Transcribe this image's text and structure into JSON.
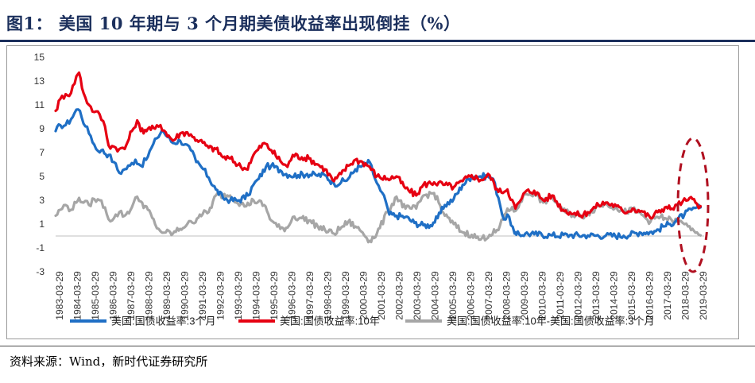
{
  "title": "图1：  美国 10 年期与 3 个月期美债收益率出现倒挂（%）",
  "source": "资料来源：Wind，新时代证券研究所",
  "colors": {
    "title": "#1b2f5c",
    "series3m": "#1f6fc5",
    "series10y": "#e60012",
    "seriesSpread": "#a6a6a6",
    "highlight": "#b01020"
  },
  "chart_data": {
    "type": "line",
    "title": "美国 10 年期与 3 个月期美债收益率出现倒挂（%）",
    "xlabel": "",
    "ylabel": "",
    "ylim": [
      -3,
      15
    ],
    "yticks": [
      "15",
      "13",
      "11",
      "9",
      "7",
      "5",
      "3",
      "1",
      "-1",
      "-3"
    ],
    "xlim": [
      1983.24,
      2019.5
    ],
    "xticks": [
      "1983-03-29",
      "1984-03-29",
      "1985-03-29",
      "1986-03-29",
      "1987-03-29",
      "1988-03-29",
      "1989-03-29",
      "1990-03-29",
      "1991-03-29",
      "1992-03-29",
      "1993-03-29",
      "1994-03-29",
      "1995-03-29",
      "1996-03-29",
      "1997-03-29",
      "1998-03-29",
      "1999-03-29",
      "2000-03-29",
      "2001-03-29",
      "2002-03-29",
      "2003-03-29",
      "2004-03-29",
      "2005-03-29",
      "2006-03-29",
      "2007-03-29",
      "2008-03-29",
      "2009-03-29",
      "2010-03-29",
      "2011-03-29",
      "2012-03-29",
      "2013-03-29",
      "2014-03-29",
      "2015-03-29",
      "2016-03-29",
      "2017-03-29",
      "2018-03-29",
      "2019-03-29"
    ],
    "annotation": "inversion highlighted with dashed ellipse around 2018-2019",
    "legend_position": "bottom",
    "series": [
      {
        "name": "美国:国债收益率:3个月",
        "x": [
          1983.24,
          1983.5,
          1983.8,
          1984.1,
          1984.4,
          1984.6,
          1984.9,
          1985.2,
          1985.5,
          1985.8,
          1986.2,
          1986.5,
          1986.8,
          1987.1,
          1987.4,
          1987.7,
          1988.0,
          1988.3,
          1988.6,
          1988.9,
          1989.2,
          1989.5,
          1989.8,
          1990.2,
          1990.5,
          1990.8,
          1991.1,
          1991.5,
          1991.8,
          1992.2,
          1992.6,
          1993.0,
          1993.5,
          1994.0,
          1994.3,
          1994.6,
          1995.0,
          1995.3,
          1995.8,
          1996.3,
          1996.8,
          1997.3,
          1997.8,
          1998.3,
          1998.8,
          1999.2,
          1999.6,
          2000.0,
          2000.4,
          2000.8,
          2001.1,
          2001.4,
          2001.7,
          2001.9,
          2002.3,
          2002.8,
          2003.3,
          2003.8,
          2004.2,
          2004.6,
          2005.0,
          2005.5,
          2006.0,
          2006.5,
          2007.0,
          2007.4,
          2007.7,
          2008.0,
          2008.3,
          2008.6,
          2008.9,
          2009.0,
          2009.5,
          2010.0,
          2011.0,
          2012.0,
          2013.0,
          2014.0,
          2015.0,
          2015.9,
          2016.3,
          2016.8,
          2017.2,
          2017.6,
          2018.0,
          2018.4,
          2018.8,
          2019.1,
          2019.3
        ],
        "values": [
          8.8,
          9.3,
          9.3,
          9.8,
          10.6,
          10.5,
          9.2,
          8.4,
          7.3,
          7.2,
          6.8,
          6.2,
          5.3,
          5.6,
          5.9,
          6.4,
          5.9,
          6.4,
          7.4,
          8.2,
          8.9,
          8.3,
          7.8,
          8.0,
          7.7,
          7.2,
          6.2,
          5.6,
          4.9,
          3.9,
          3.2,
          3.0,
          3.0,
          3.4,
          4.3,
          4.8,
          5.8,
          5.9,
          5.5,
          5.1,
          5.1,
          5.2,
          5.1,
          5.1,
          4.4,
          4.5,
          4.8,
          5.6,
          5.9,
          6.2,
          4.8,
          3.8,
          2.9,
          1.8,
          1.7,
          1.6,
          1.1,
          0.9,
          0.9,
          1.5,
          2.6,
          3.1,
          4.3,
          5.0,
          5.0,
          5.0,
          4.8,
          3.2,
          1.4,
          1.6,
          0.2,
          0.1,
          0.2,
          0.15,
          0.05,
          0.08,
          0.05,
          0.03,
          0.02,
          0.3,
          0.3,
          0.4,
          0.8,
          1.0,
          1.4,
          1.8,
          2.2,
          2.4,
          2.4
        ]
      },
      {
        "name": "美国:国债收益率:10年",
        "x": [
          1983.24,
          1983.5,
          1983.8,
          1984.1,
          1984.4,
          1984.55,
          1984.8,
          1985.1,
          1985.4,
          1985.7,
          1986.0,
          1986.2,
          1986.5,
          1986.8,
          1987.1,
          1987.5,
          1987.8,
          1988.0,
          1988.4,
          1988.8,
          1989.1,
          1989.4,
          1989.8,
          1990.2,
          1990.6,
          1990.9,
          1991.3,
          1991.8,
          1992.2,
          1992.6,
          1993.0,
          1993.6,
          1993.9,
          1994.3,
          1994.9,
          1995.3,
          1995.8,
          1996.2,
          1996.5,
          1997.0,
          1997.4,
          1997.9,
          1998.3,
          1998.8,
          1999.2,
          1999.6,
          2000.0,
          2000.4,
          2000.8,
          2001.2,
          2001.8,
          2002.3,
          2002.8,
          2003.4,
          2003.8,
          2004.4,
          2005.0,
          2005.5,
          2006.0,
          2006.5,
          2007.0,
          2007.5,
          2008.0,
          2008.5,
          2008.95,
          2009.2,
          2009.5,
          2010.0,
          2010.5,
          2011.0,
          2011.6,
          2012.0,
          2012.6,
          2013.0,
          2013.6,
          2014.0,
          2014.6,
          2015.0,
          2015.5,
          2016.0,
          2016.5,
          2016.9,
          2017.3,
          2017.7,
          2018.0,
          2018.3,
          2018.6,
          2018.85,
          2019.1,
          2019.3
        ],
        "values": [
          10.5,
          11.5,
          11.9,
          12.0,
          13.4,
          13.7,
          12.0,
          11.0,
          10.4,
          10.2,
          9.2,
          7.6,
          7.5,
          7.3,
          7.3,
          8.8,
          9.7,
          8.8,
          9.0,
          9.0,
          9.3,
          8.7,
          8.0,
          8.6,
          8.7,
          8.3,
          8.0,
          7.4,
          7.3,
          6.6,
          6.5,
          5.8,
          5.6,
          6.8,
          7.8,
          7.2,
          6.3,
          5.8,
          6.8,
          6.6,
          6.5,
          6.0,
          5.6,
          4.6,
          5.2,
          5.9,
          6.4,
          6.2,
          5.8,
          5.0,
          4.8,
          5.0,
          4.0,
          3.4,
          4.3,
          4.5,
          4.3,
          4.1,
          4.6,
          5.1,
          4.7,
          5.1,
          3.7,
          3.9,
          2.3,
          2.9,
          3.7,
          3.8,
          3.0,
          3.4,
          2.2,
          2.0,
          1.7,
          2.0,
          2.6,
          2.8,
          2.5,
          2.0,
          2.3,
          2.1,
          1.5,
          2.0,
          2.4,
          2.3,
          2.6,
          2.9,
          3.0,
          3.1,
          2.7,
          2.5
        ]
      },
      {
        "name": "美国:国债收益率:10年-美国:国债收益率:3个月",
        "x": [
          1983.24,
          1983.5,
          1983.8,
          1984.1,
          1984.4,
          1984.55,
          1984.8,
          1985.1,
          1985.4,
          1985.7,
          1986.0,
          1986.2,
          1986.5,
          1986.8,
          1987.1,
          1987.5,
          1987.8,
          1988.0,
          1988.4,
          1988.8,
          1989.1,
          1989.4,
          1989.8,
          1990.2,
          1990.6,
          1990.9,
          1991.3,
          1991.8,
          1992.2,
          1992.6,
          1993.0,
          1993.6,
          1993.9,
          1994.3,
          1994.9,
          1995.3,
          1995.8,
          1996.2,
          1996.5,
          1997.0,
          1997.4,
          1997.9,
          1998.3,
          1998.8,
          1999.2,
          1999.6,
          2000.0,
          2000.4,
          2000.8,
          2001.2,
          2001.8,
          2002.3,
          2002.8,
          2003.4,
          2003.8,
          2004.4,
          2005.0,
          2005.5,
          2006.0,
          2006.5,
          2007.0,
          2007.5,
          2008.0,
          2008.5,
          2008.95,
          2009.2,
          2009.5,
          2010.0,
          2010.5,
          2011.0,
          2011.6,
          2012.0,
          2012.6,
          2013.0,
          2013.6,
          2014.0,
          2014.6,
          2015.0,
          2015.5,
          2016.0,
          2016.5,
          2016.9,
          2017.3,
          2017.7,
          2018.0,
          2018.3,
          2018.6,
          2018.85,
          2019.1,
          2019.3
        ],
        "values": [
          1.7,
          2.2,
          2.6,
          2.2,
          2.8,
          3.2,
          2.8,
          2.6,
          3.1,
          3.0,
          2.4,
          1.4,
          1.5,
          2.0,
          1.7,
          2.4,
          3.3,
          2.9,
          2.2,
          1.0,
          0.4,
          0.3,
          0.2,
          0.6,
          1.0,
          1.1,
          1.8,
          2.0,
          3.4,
          3.4,
          3.4,
          2.7,
          2.5,
          3.0,
          2.6,
          1.3,
          0.6,
          0.7,
          1.6,
          1.5,
          1.3,
          0.8,
          0.5,
          0.2,
          0.7,
          1.2,
          0.8,
          0.3,
          -0.4,
          0.2,
          2.0,
          3.3,
          2.3,
          2.3,
          3.4,
          3.6,
          1.7,
          1.0,
          0.3,
          0.1,
          -0.3,
          0.1,
          0.5,
          2.3,
          2.1,
          2.8,
          3.5,
          3.6,
          2.8,
          3.3,
          2.1,
          1.9,
          1.6,
          1.9,
          2.5,
          2.7,
          2.4,
          2.0,
          2.2,
          1.8,
          1.2,
          1.6,
          1.5,
          1.3,
          1.2,
          1.1,
          0.8,
          0.6,
          0.3,
          0.05
        ]
      }
    ]
  }
}
